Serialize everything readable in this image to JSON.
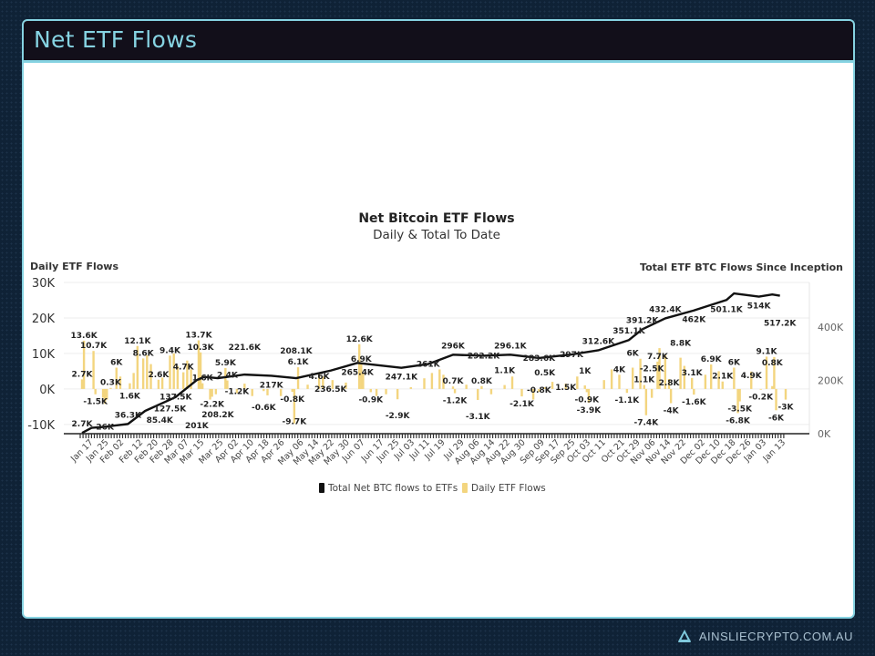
{
  "slide": {
    "title": "Net ETF Flows",
    "footer": "AINSLIECRYPTO.COM.AU",
    "logo_icon": "ainslie-logo-icon"
  },
  "colors": {
    "bars": "#f3d57f",
    "line": "#111111",
    "border": "#86d3e2",
    "header_bg": "#120f1a"
  },
  "chart_data": {
    "type": "bar+line",
    "title": "Net Bitcoin ETF Flows",
    "subtitle": "Daily & Total To Date",
    "ylabel_left": "Daily ETF Flows",
    "ylabel_right": "Total ETF BTC Flows Since Inception",
    "left_ticks": [
      "30K",
      "20K",
      "10K",
      "0K",
      "-10K"
    ],
    "left_tick_values": [
      30,
      20,
      10,
      0,
      -10
    ],
    "right_ticks": [
      "400K",
      "200K",
      "0K"
    ],
    "right_tick_values": [
      400,
      200,
      0
    ],
    "ylim_left": [
      -12.6,
      30
    ],
    "ylim_right": [
      0,
      567
    ],
    "x_range": [
      "2024-01-11",
      "2025-01-13"
    ],
    "x_ticks": [
      {
        "d": "2024-01-17",
        "l": "Jan 17"
      },
      {
        "d": "2024-01-25",
        "l": "Jan 25"
      },
      {
        "d": "2024-02-02",
        "l": "Feb 02"
      },
      {
        "d": "2024-02-12",
        "l": "Feb 12"
      },
      {
        "d": "2024-02-20",
        "l": "Feb 20"
      },
      {
        "d": "2024-02-28",
        "l": "Feb 28"
      },
      {
        "d": "2024-03-07",
        "l": "Mar 07"
      },
      {
        "d": "2024-03-15",
        "l": "Mar 15"
      },
      {
        "d": "2024-03-25",
        "l": "Mar 25"
      },
      {
        "d": "2024-04-02",
        "l": "Apr 02"
      },
      {
        "d": "2024-04-10",
        "l": "Apr 10"
      },
      {
        "d": "2024-04-18",
        "l": "Apr 18"
      },
      {
        "d": "2024-04-26",
        "l": "Apr 26"
      },
      {
        "d": "2024-05-06",
        "l": "May 06"
      },
      {
        "d": "2024-05-14",
        "l": "May 14"
      },
      {
        "d": "2024-05-22",
        "l": "May 22"
      },
      {
        "d": "2024-05-30",
        "l": "May 30"
      },
      {
        "d": "2024-06-07",
        "l": "Jun 07"
      },
      {
        "d": "2024-06-17",
        "l": "Jun 17"
      },
      {
        "d": "2024-06-25",
        "l": "Jun 25"
      },
      {
        "d": "2024-07-03",
        "l": "Jul 03"
      },
      {
        "d": "2024-07-11",
        "l": "Jul 11"
      },
      {
        "d": "2024-07-19",
        "l": "Jul 19"
      },
      {
        "d": "2024-07-29",
        "l": "Jul 29"
      },
      {
        "d": "2024-08-06",
        "l": "Aug 06"
      },
      {
        "d": "2024-08-14",
        "l": "Aug 14"
      },
      {
        "d": "2024-08-22",
        "l": "Aug 22"
      },
      {
        "d": "2024-08-30",
        "l": "Aug 30"
      },
      {
        "d": "2024-09-09",
        "l": "Sep 09"
      },
      {
        "d": "2024-09-17",
        "l": "Sep 17"
      },
      {
        "d": "2024-09-25",
        "l": "Sep 25"
      },
      {
        "d": "2024-10-03",
        "l": "Oct 03"
      },
      {
        "d": "2024-10-11",
        "l": "Oct 11"
      },
      {
        "d": "2024-10-21",
        "l": "Oct 21"
      },
      {
        "d": "2024-10-29",
        "l": "Oct 29"
      },
      {
        "d": "2024-11-06",
        "l": "Nov 06"
      },
      {
        "d": "2024-11-14",
        "l": "Nov 14"
      },
      {
        "d": "2024-11-22",
        "l": "Nov 22"
      },
      {
        "d": "2024-12-02",
        "l": "Dec 02"
      },
      {
        "d": "2024-12-10",
        "l": "Dec 10"
      },
      {
        "d": "2024-12-18",
        "l": "Dec 18"
      },
      {
        "d": "2024-12-26",
        "l": "Dec 26"
      },
      {
        "d": "2025-01-03",
        "l": "Jan 03"
      },
      {
        "d": "2025-01-13",
        "l": "Jan 13"
      }
    ],
    "legend": [
      {
        "name": "Total Net BTC flows to ETFs",
        "color": "#111111"
      },
      {
        "name": "Daily ETF Flows",
        "color": "#f3d57f"
      }
    ],
    "legend_position": "bottom",
    "series": [
      {
        "name": "Daily ETF Flows",
        "type": "bar",
        "axis": "left",
        "unit": "K BTC",
        "points": [
          {
            "d": "2024-01-11",
            "v": 2.7,
            "l": "2.7K"
          },
          {
            "d": "2024-01-12",
            "v": 13.6,
            "l": "13.6K"
          },
          {
            "d": "2024-01-17",
            "v": 10.7,
            "l": "10.7K"
          },
          {
            "d": "2024-01-18",
            "v": -1.5,
            "l": "-1.5K"
          },
          {
            "d": "2024-01-22",
            "v": -2.5
          },
          {
            "d": "2024-01-23",
            "v": -4.2
          },
          {
            "d": "2024-01-24",
            "v": -3.0
          },
          {
            "d": "2024-01-26",
            "v": 0.3,
            "l": "0.3K"
          },
          {
            "d": "2024-01-29",
            "v": 6,
            "l": "6K"
          },
          {
            "d": "2024-01-31",
            "v": 3.5
          },
          {
            "d": "2024-02-05",
            "v": 1.6,
            "l": "1.6K"
          },
          {
            "d": "2024-02-07",
            "v": 4.5
          },
          {
            "d": "2024-02-09",
            "v": 12.1,
            "l": "12.1K"
          },
          {
            "d": "2024-02-12",
            "v": 8.6,
            "l": "8.6K"
          },
          {
            "d": "2024-02-14",
            "v": 9.5
          },
          {
            "d": "2024-02-16",
            "v": 7.0
          },
          {
            "d": "2024-02-20",
            "v": 2.6,
            "l": "2.6K"
          },
          {
            "d": "2024-02-22",
            "v": 3.2
          },
          {
            "d": "2024-02-26",
            "v": 9.4,
            "l": "9.4K"
          },
          {
            "d": "2024-02-28",
            "v": 10.0
          },
          {
            "d": "2024-03-01",
            "v": 6.5
          },
          {
            "d": "2024-03-04",
            "v": 4.7,
            "l": "4.7K"
          },
          {
            "d": "2024-03-06",
            "v": 8.0
          },
          {
            "d": "2024-03-08",
            "v": 5.5
          },
          {
            "d": "2024-03-12",
            "v": 13.7,
            "l": "13.7K"
          },
          {
            "d": "2024-03-13",
            "v": 10.3,
            "l": "10.3K"
          },
          {
            "d": "2024-03-14",
            "v": 1.6,
            "l": "1.6K"
          },
          {
            "d": "2024-03-18",
            "v": -3.0
          },
          {
            "d": "2024-03-19",
            "v": -2.2,
            "l": "-2.2K"
          },
          {
            "d": "2024-03-21",
            "v": -1.5
          },
          {
            "d": "2024-03-26",
            "v": 5.9,
            "l": "5.9K"
          },
          {
            "d": "2024-03-27",
            "v": 2.4,
            "l": "2.4K"
          },
          {
            "d": "2024-04-01",
            "v": -1.2,
            "l": "-1.2K"
          },
          {
            "d": "2024-04-05",
            "v": 1.5
          },
          {
            "d": "2024-04-09",
            "v": -2.0
          },
          {
            "d": "2024-04-15",
            "v": -0.6,
            "l": "-0.6K"
          },
          {
            "d": "2024-04-17",
            "v": -1.8
          },
          {
            "d": "2024-04-24",
            "v": -2.0
          },
          {
            "d": "2024-04-30",
            "v": -0.8,
            "l": "-0.8K"
          },
          {
            "d": "2024-05-01",
            "v": -9.7,
            "l": "-9.7K"
          },
          {
            "d": "2024-05-03",
            "v": 6.1,
            "l": "6.1K"
          },
          {
            "d": "2024-05-08",
            "v": 1.2
          },
          {
            "d": "2024-05-14",
            "v": 4.6,
            "l": "4.6K"
          },
          {
            "d": "2024-05-16",
            "v": 3.5
          },
          {
            "d": "2024-05-21",
            "v": 2.5
          },
          {
            "d": "2024-05-28",
            "v": 1.8
          },
          {
            "d": "2024-06-04",
            "v": 12.6,
            "l": "12.6K"
          },
          {
            "d": "2024-06-05",
            "v": 6.9,
            "l": "6.9K"
          },
          {
            "d": "2024-06-06",
            "v": 4.5
          },
          {
            "d": "2024-06-10",
            "v": -0.9,
            "l": "-0.9K"
          },
          {
            "d": "2024-06-13",
            "v": -2.0
          },
          {
            "d": "2024-06-18",
            "v": -1.5
          },
          {
            "d": "2024-06-24",
            "v": -2.9,
            "l": "-2.9K"
          },
          {
            "d": "2024-07-01",
            "v": 0.5
          },
          {
            "d": "2024-07-08",
            "v": 3.0
          },
          {
            "d": "2024-07-12",
            "v": 4.5
          },
          {
            "d": "2024-07-16",
            "v": 5.5
          },
          {
            "d": "2024-07-18",
            "v": 4.0
          },
          {
            "d": "2024-07-23",
            "v": 0.7,
            "l": "0.7K"
          },
          {
            "d": "2024-07-24",
            "v": -1.2,
            "l": "-1.2K"
          },
          {
            "d": "2024-07-30",
            "v": 1.2
          },
          {
            "d": "2024-08-05",
            "v": -3.1,
            "l": "-3.1K"
          },
          {
            "d": "2024-08-07",
            "v": 0.8,
            "l": "0.8K"
          },
          {
            "d": "2024-08-12",
            "v": -1.5
          },
          {
            "d": "2024-08-19",
            "v": 1.1,
            "l": "1.1K"
          },
          {
            "d": "2024-08-23",
            "v": 3.5
          },
          {
            "d": "2024-08-28",
            "v": -2.1,
            "l": "-2.1K"
          },
          {
            "d": "2024-09-03",
            "v": -3.0
          },
          {
            "d": "2024-09-06",
            "v": -0.8,
            "l": "-0.8K"
          },
          {
            "d": "2024-09-09",
            "v": 0.5,
            "l": "0.5K"
          },
          {
            "d": "2024-09-13",
            "v": 2.0
          },
          {
            "d": "2024-09-20",
            "v": 1.5,
            "l": "1.5K"
          },
          {
            "d": "2024-09-26",
            "v": 3.5
          },
          {
            "d": "2024-09-30",
            "v": 1,
            "l": "1K"
          },
          {
            "d": "2024-10-01",
            "v": -0.9,
            "l": "-0.9K"
          },
          {
            "d": "2024-10-02",
            "v": -3.9,
            "l": "-3.9K"
          },
          {
            "d": "2024-10-10",
            "v": 2.5
          },
          {
            "d": "2024-10-14",
            "v": 5.5
          },
          {
            "d": "2024-10-18",
            "v": 4,
            "l": "4K"
          },
          {
            "d": "2024-10-22",
            "v": -1.1,
            "l": "-1.1K"
          },
          {
            "d": "2024-10-25",
            "v": 6,
            "l": "6K"
          },
          {
            "d": "2024-10-29",
            "v": 8.5
          },
          {
            "d": "2024-10-31",
            "v": 1.1,
            "l": "1.1K"
          },
          {
            "d": "2024-11-01",
            "v": -7.4,
            "l": "-7.4K"
          },
          {
            "d": "2024-11-04",
            "v": -2.5,
            "l": "-2.5K"
          },
          {
            "d": "2024-11-07",
            "v": 7.7,
            "l": "7.7K"
          },
          {
            "d": "2024-11-08",
            "v": 11.5
          },
          {
            "d": "2024-11-11",
            "v": 9.5
          },
          {
            "d": "2024-11-13",
            "v": 2.8,
            "l": "2.8K"
          },
          {
            "d": "2024-11-14",
            "v": -4,
            "l": "-4K"
          },
          {
            "d": "2024-11-19",
            "v": 8.8,
            "l": "8.8K"
          },
          {
            "d": "2024-11-21",
            "v": 6.5
          },
          {
            "d": "2024-11-25",
            "v": 3.1,
            "l": "3.1K"
          },
          {
            "d": "2024-11-26",
            "v": -1.6,
            "l": "-1.6K"
          },
          {
            "d": "2024-12-02",
            "v": 4.0
          },
          {
            "d": "2024-12-05",
            "v": 6.9,
            "l": "6.9K"
          },
          {
            "d": "2024-12-09",
            "v": 5.0
          },
          {
            "d": "2024-12-11",
            "v": 2.1,
            "l": "2.1K"
          },
          {
            "d": "2024-12-17",
            "v": 6,
            "l": "6K"
          },
          {
            "d": "2024-12-19",
            "v": -6.8,
            "l": "-6.8K"
          },
          {
            "d": "2024-12-20",
            "v": -3.5,
            "l": "-3.5K"
          },
          {
            "d": "2024-12-26",
            "v": 4.9,
            "l": "4.9K"
          },
          {
            "d": "2024-12-31",
            "v": -0.2,
            "l": "-0.2K"
          },
          {
            "d": "2025-01-03",
            "v": 9.1,
            "l": "9.1K"
          },
          {
            "d": "2025-01-06",
            "v": 0.8,
            "l": "0.8K"
          },
          {
            "d": "2025-01-07",
            "v": 9.0
          },
          {
            "d": "2025-01-08",
            "v": -6,
            "l": "-6K"
          },
          {
            "d": "2025-01-13",
            "v": -3,
            "l": "-3K"
          }
        ]
      },
      {
        "name": "Total Net BTC flows to ETFs",
        "type": "line",
        "axis": "right",
        "unit": "K BTC",
        "points": [
          {
            "d": "2024-01-11",
            "v": 2.7,
            "l": "2.7K"
          },
          {
            "d": "2024-01-16",
            "v": 22
          },
          {
            "d": "2024-01-23",
            "v": 26,
            "l": "26K"
          },
          {
            "d": "2024-02-04",
            "v": 36.3,
            "l": "36.3K"
          },
          {
            "d": "2024-02-13",
            "v": 85.4,
            "l": "85.4K"
          },
          {
            "d": "2024-02-26",
            "v": 127.5,
            "l": "127.5K"
          },
          {
            "d": "2024-02-29",
            "v": 137.5,
            "l": "137.5K"
          },
          {
            "d": "2024-03-11",
            "v": 201,
            "l": "201K"
          },
          {
            "d": "2024-03-15",
            "v": 213
          },
          {
            "d": "2024-03-22",
            "v": 208.2,
            "l": "208.2K"
          },
          {
            "d": "2024-04-05",
            "v": 221.6,
            "l": "221.6K"
          },
          {
            "d": "2024-04-19",
            "v": 217,
            "l": "217K"
          },
          {
            "d": "2024-05-02",
            "v": 208.1,
            "l": "208.1K"
          },
          {
            "d": "2024-05-20",
            "v": 236.5,
            "l": "236.5K"
          },
          {
            "d": "2024-06-03",
            "v": 265.4,
            "l": "265.4K"
          },
          {
            "d": "2024-06-26",
            "v": 247.1,
            "l": "247.1K"
          },
          {
            "d": "2024-07-10",
            "v": 261,
            "l": "261K"
          },
          {
            "d": "2024-07-23",
            "v": 296,
            "l": "296K"
          },
          {
            "d": "2024-08-08",
            "v": 292.2,
            "l": "292.2K"
          },
          {
            "d": "2024-08-22",
            "v": 296.1,
            "l": "296.1K"
          },
          {
            "d": "2024-09-06",
            "v": 283.6,
            "l": "283.6K"
          },
          {
            "d": "2024-09-23",
            "v": 297,
            "l": "297K"
          },
          {
            "d": "2024-10-07",
            "v": 312.6,
            "l": "312.6K"
          },
          {
            "d": "2024-10-23",
            "v": 351.1,
            "l": "351.1K"
          },
          {
            "d": "2024-10-30",
            "v": 391.2,
            "l": "391.2K"
          },
          {
            "d": "2024-11-11",
            "v": 432.4,
            "l": "432.4K"
          },
          {
            "d": "2024-11-26",
            "v": 462,
            "l": "462K"
          },
          {
            "d": "2024-12-13",
            "v": 501.1,
            "l": "501.1K"
          },
          {
            "d": "2024-12-17",
            "v": 526
          },
          {
            "d": "2024-12-30",
            "v": 514,
            "l": "514K"
          },
          {
            "d": "2025-01-06",
            "v": 522
          },
          {
            "d": "2025-01-10",
            "v": 517.2,
            "l": "517.2K"
          }
        ]
      }
    ]
  }
}
